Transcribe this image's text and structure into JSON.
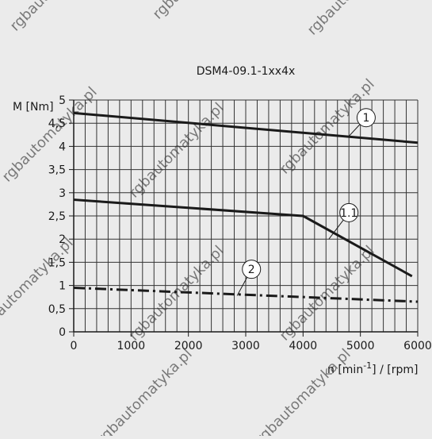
{
  "chart_data": {
    "type": "line",
    "title": "DSM4-09.1-1xx4x",
    "ylabel": "M [Nm]",
    "xlabel_prefix": "n [min",
    "xlabel_sup": "-1",
    "xlabel_suffix": "] / [rpm]",
    "xlim": [
      0,
      6000
    ],
    "ylim": [
      0,
      5
    ],
    "xticks": [
      0,
      1000,
      2000,
      3000,
      4000,
      5000,
      6000
    ],
    "xtick_labels": [
      "0",
      "1000",
      "2000",
      "3000",
      "4000",
      "5000",
      "6000"
    ],
    "yticks": [
      0,
      0.5,
      1,
      1.5,
      2,
      2.5,
      3,
      3.5,
      4,
      4.5,
      5
    ],
    "ytick_labels": [
      "0",
      "0,5",
      "1",
      "1,5",
      "2",
      "2,5",
      "3",
      "3,5",
      "4",
      "4,5",
      "5"
    ],
    "grid": true,
    "x_minor_step": 200,
    "series": [
      {
        "name": "1",
        "style": "solid",
        "x": [
          0,
          6000
        ],
        "y": [
          4.72,
          4.08
        ]
      },
      {
        "name": "1.1",
        "style": "solid",
        "x": [
          0,
          4000,
          5900
        ],
        "y": [
          2.85,
          2.5,
          1.2
        ]
      },
      {
        "name": "2",
        "style": "dashdot",
        "x": [
          0,
          6000
        ],
        "y": [
          0.95,
          0.65
        ]
      }
    ],
    "callouts": [
      {
        "label": "1",
        "circle": [
          5100,
          4.62
        ],
        "line_to": [
          4800,
          4.22
        ]
      },
      {
        "label": "1.1",
        "circle": [
          4800,
          2.57
        ],
        "line_to": [
          4450,
          2.0
        ]
      },
      {
        "label": "2",
        "circle": [
          3100,
          1.35
        ],
        "line_to": [
          2850,
          0.78
        ]
      }
    ]
  },
  "watermark": "rgbautomatyka.pl",
  "colors": {
    "background": "#ebebeb",
    "line": "#1a1a1a"
  }
}
